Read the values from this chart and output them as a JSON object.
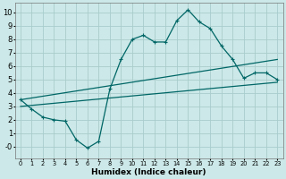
{
  "background_color": "#cce8e8",
  "grid_color": "#aacccc",
  "line_color": "#006666",
  "xlabel": "Humidex (Indice chaleur)",
  "xlim": [
    -0.5,
    23.5
  ],
  "ylim": [
    -0.9,
    10.7
  ],
  "yticks": [
    0,
    1,
    2,
    3,
    4,
    5,
    6,
    7,
    8,
    9,
    10
  ],
  "xticks": [
    0,
    1,
    2,
    3,
    4,
    5,
    6,
    7,
    8,
    9,
    10,
    11,
    12,
    13,
    14,
    15,
    16,
    17,
    18,
    19,
    20,
    21,
    22,
    23
  ],
  "series1_x": [
    0,
    1,
    2,
    3,
    4,
    5,
    6,
    7,
    8,
    9,
    10,
    11,
    12,
    13,
    14,
    15,
    16,
    17,
    18,
    19,
    20,
    21,
    22,
    23
  ],
  "series1_y": [
    3.5,
    2.8,
    2.2,
    2.0,
    1.9,
    0.5,
    -0.1,
    0.4,
    4.3,
    6.5,
    8.0,
    8.3,
    7.8,
    7.8,
    9.4,
    10.2,
    9.3,
    8.8,
    7.5,
    6.5,
    5.1,
    5.5,
    5.5,
    5.0
  ],
  "series2_x": [
    0,
    23
  ],
  "series2_y": [
    3.5,
    6.5
  ],
  "series3_x": [
    0,
    23
  ],
  "series3_y": [
    3.0,
    4.8
  ],
  "fontsize_xlabel": 6.5,
  "fontsize_ytick": 6.0,
  "fontsize_xtick": 4.8
}
